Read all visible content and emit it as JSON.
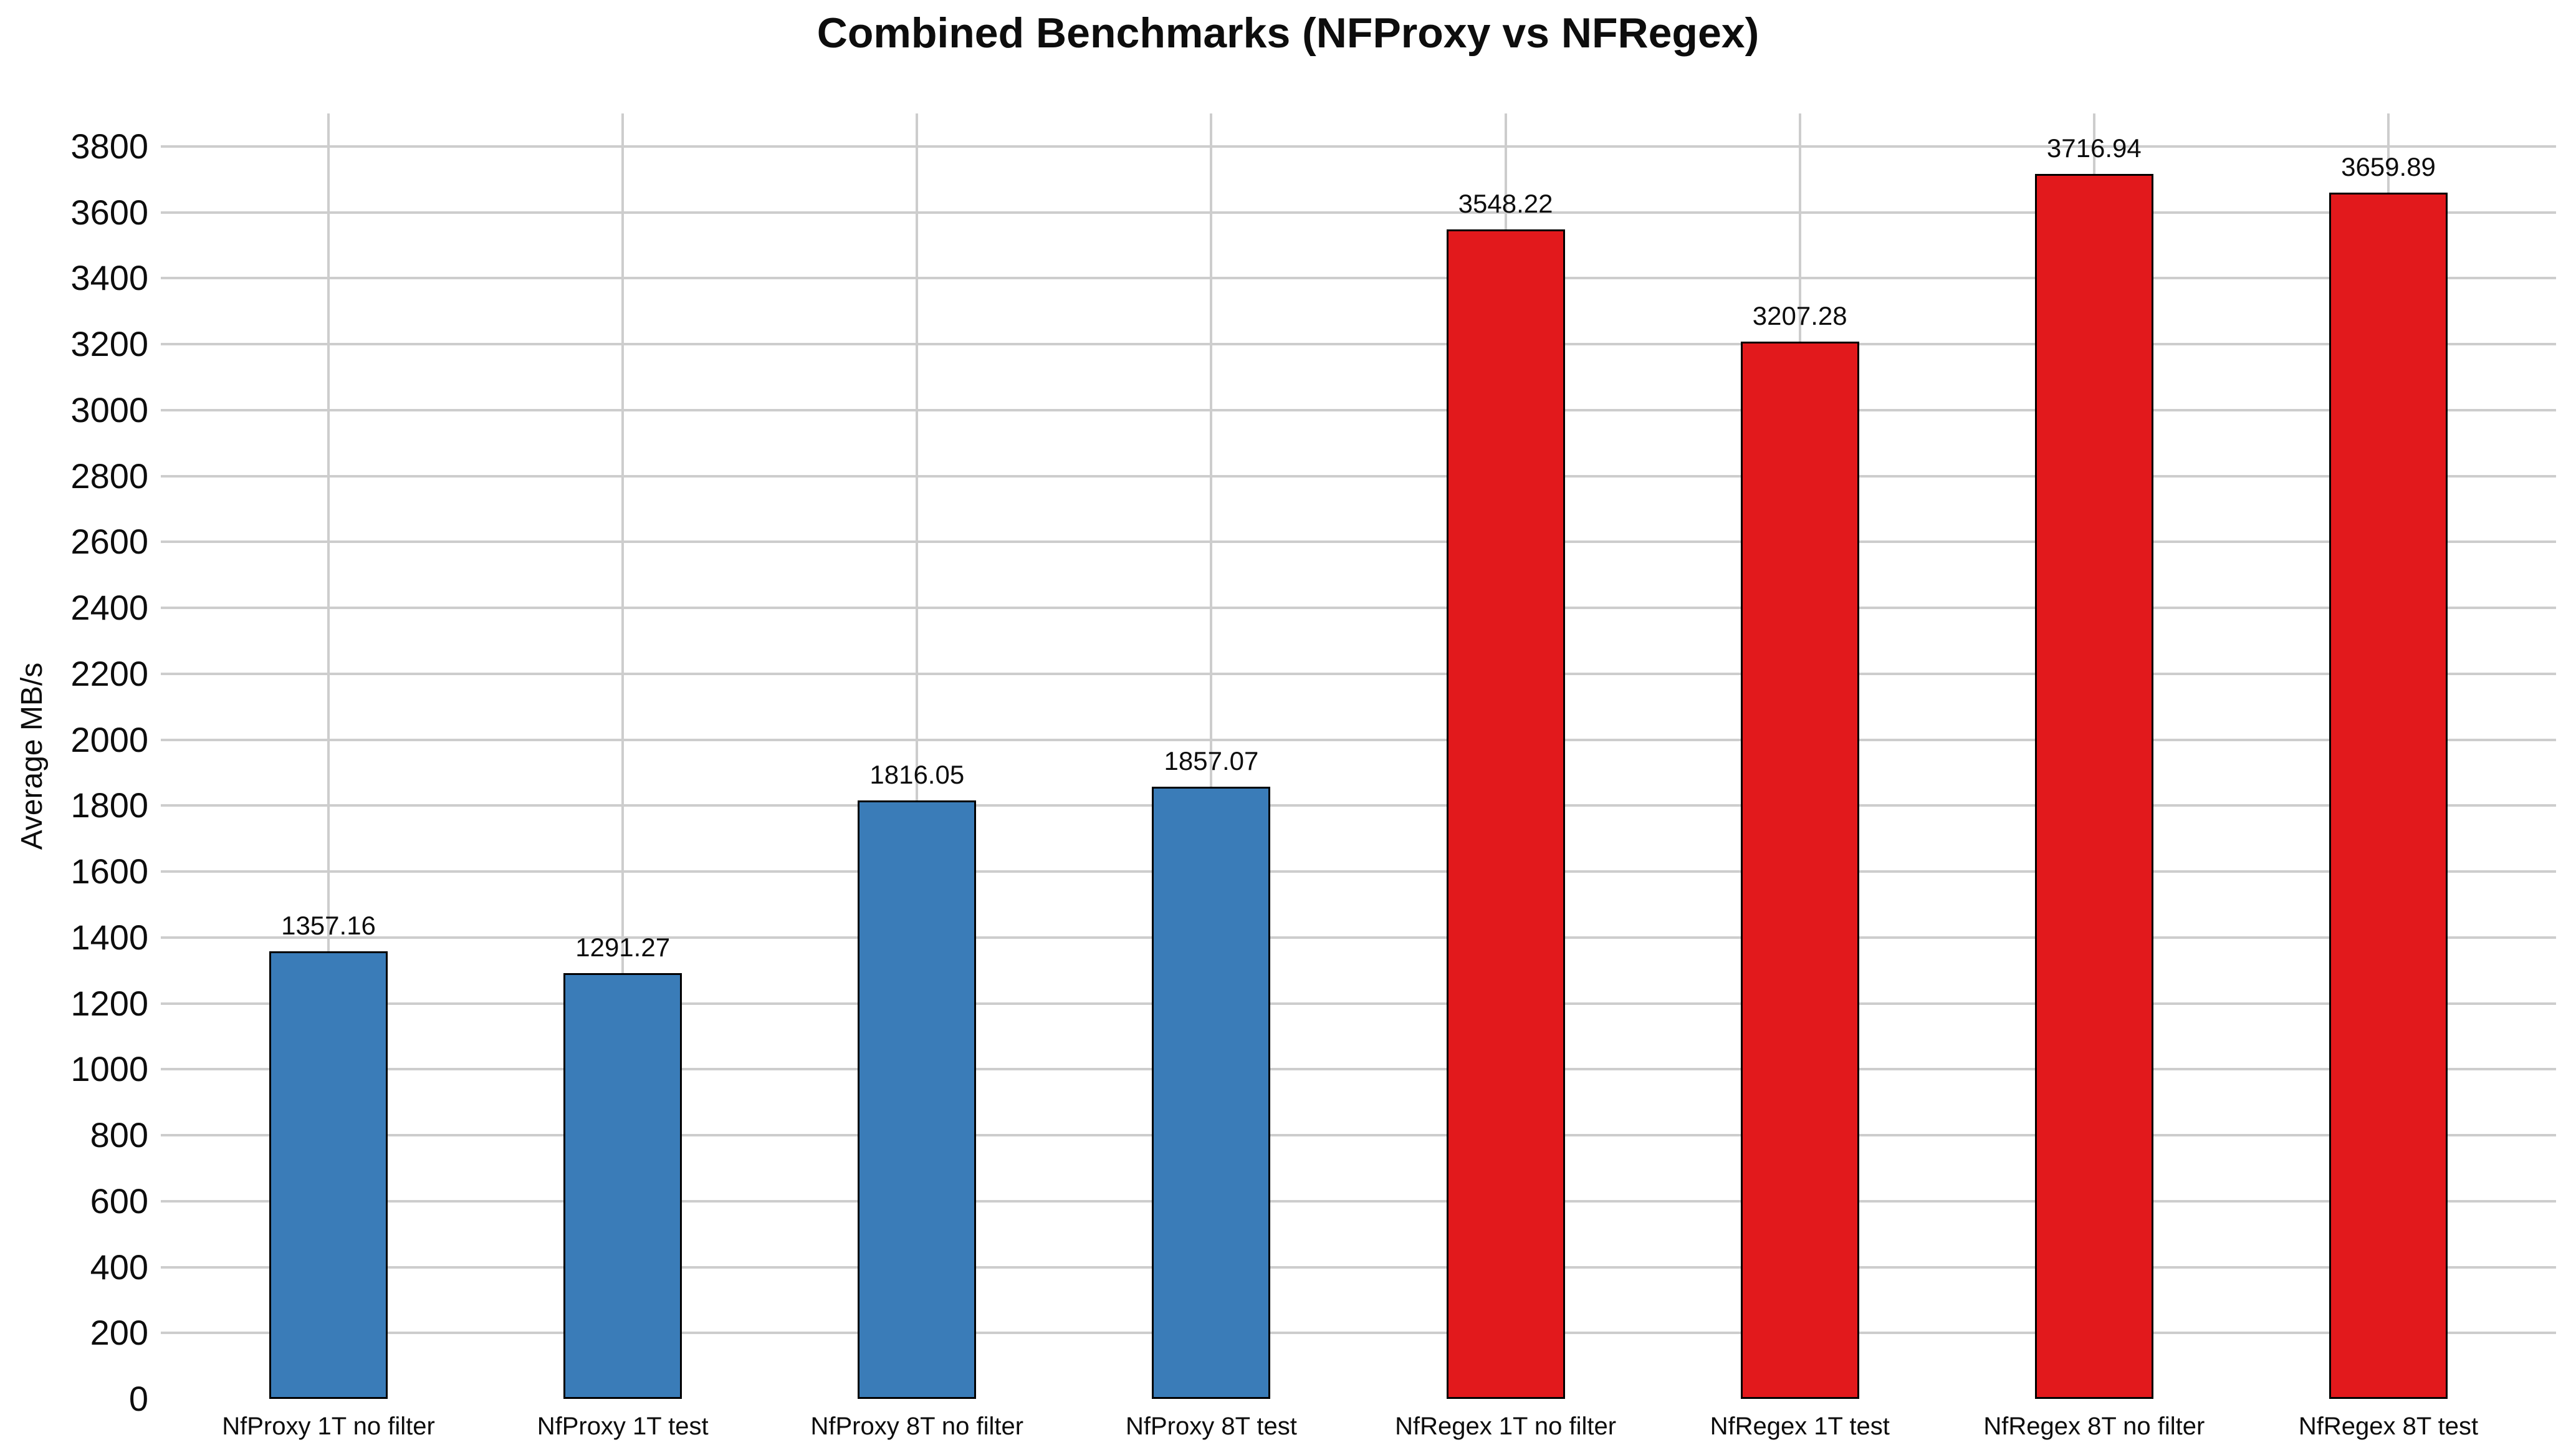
{
  "chart_data": {
    "type": "bar",
    "title": "Combined Benchmarks (NFProxy vs NFRegex)",
    "xlabel": "",
    "ylabel": "Average MB/s",
    "categories": [
      "NfProxy 1T no filter",
      "NfProxy 1T test",
      "NfProxy 8T no filter",
      "NfProxy 8T test",
      "NfRegex 1T no filter",
      "NfRegex 1T test",
      "NfRegex 8T no filter",
      "NfRegex 8T test"
    ],
    "values": [
      1357.16,
      1291.27,
      1816.05,
      1857.07,
      3548.22,
      3207.28,
      3716.94,
      3659.89
    ],
    "value_labels": [
      "1357.16",
      "1291.27",
      "1816.05",
      "1857.07",
      "3548.22",
      "3207.28",
      "3716.94",
      "3659.89"
    ],
    "bar_colors": [
      "#3a7cb8",
      "#3a7cb8",
      "#3a7cb8",
      "#3a7cb8",
      "#e2191c",
      "#e2191c",
      "#e2191c",
      "#e2191c"
    ],
    "series": [
      {
        "name": "NfProxy",
        "color": "#3a7cb8",
        "values": [
          1357.16,
          1291.27,
          1816.05,
          1857.07
        ]
      },
      {
        "name": "NfRegex",
        "color": "#e2191c",
        "values": [
          3548.22,
          3207.28,
          3716.94,
          3659.89
        ]
      }
    ],
    "ylim": [
      0,
      3900
    ],
    "ytick_min": 0,
    "ytick_max": 3800,
    "ytick_step": 200,
    "grid": true,
    "gridline_color": "#cdcdcd",
    "bar_edge_color": "#000000",
    "background_color": "#ffffff",
    "legend_position": "none"
  }
}
